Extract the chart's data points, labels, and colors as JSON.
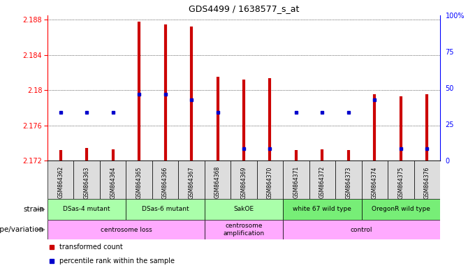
{
  "title": "GDS4499 / 1638577_s_at",
  "samples": [
    "GSM864362",
    "GSM864363",
    "GSM864364",
    "GSM864365",
    "GSM864366",
    "GSM864367",
    "GSM864368",
    "GSM864369",
    "GSM864370",
    "GSM864371",
    "GSM864372",
    "GSM864373",
    "GSM864374",
    "GSM864375",
    "GSM864376"
  ],
  "red_values": [
    2.1732,
    2.1734,
    2.1733,
    2.1878,
    2.1875,
    2.1872,
    2.1815,
    2.1812,
    2.1814,
    2.1732,
    2.1733,
    2.1732,
    2.1795,
    2.1793,
    2.1795
  ],
  "blue_values": [
    0.3333,
    0.3333,
    0.3333,
    0.4583,
    0.4583,
    0.4167,
    0.3333,
    0.0833,
    0.0833,
    0.3333,
    0.3333,
    0.3333,
    0.4167,
    0.0833,
    0.0833
  ],
  "ymin": 2.172,
  "ymax": 2.1885,
  "yticks": [
    2.172,
    2.176,
    2.18,
    2.184,
    2.188
  ],
  "ytick_labels": [
    "2.172",
    "2.176",
    "2.18",
    "2.184",
    "2.188"
  ],
  "right_yticks": [
    0,
    25,
    50,
    75,
    100
  ],
  "right_ytick_labels": [
    "0",
    "25",
    "50",
    "75",
    "100%"
  ],
  "strain_groups": [
    {
      "label": "DSas-4 mutant",
      "start": 0,
      "end": 3,
      "color": "#aaffaa"
    },
    {
      "label": "DSas-6 mutant",
      "start": 3,
      "end": 6,
      "color": "#aaffaa"
    },
    {
      "label": "SakOE",
      "start": 6,
      "end": 9,
      "color": "#aaffaa"
    },
    {
      "label": "white 67 wild type",
      "start": 9,
      "end": 12,
      "color": "#77ee77"
    },
    {
      "label": "OregonR wild type",
      "start": 12,
      "end": 15,
      "color": "#77ee77"
    }
  ],
  "genotype_groups": [
    {
      "label": "centrosome loss",
      "start": 0,
      "end": 6,
      "color": "#ffaaff"
    },
    {
      "label": "centrosome\namplification",
      "start": 6,
      "end": 9,
      "color": "#ffaaff"
    },
    {
      "label": "control",
      "start": 9,
      "end": 15,
      "color": "#ffaaff"
    }
  ],
  "red_color": "#CC0000",
  "blue_color": "#0000CC",
  "baseline": 2.172,
  "bg_color": "#ffffff",
  "tick_box_color": "#dddddd"
}
